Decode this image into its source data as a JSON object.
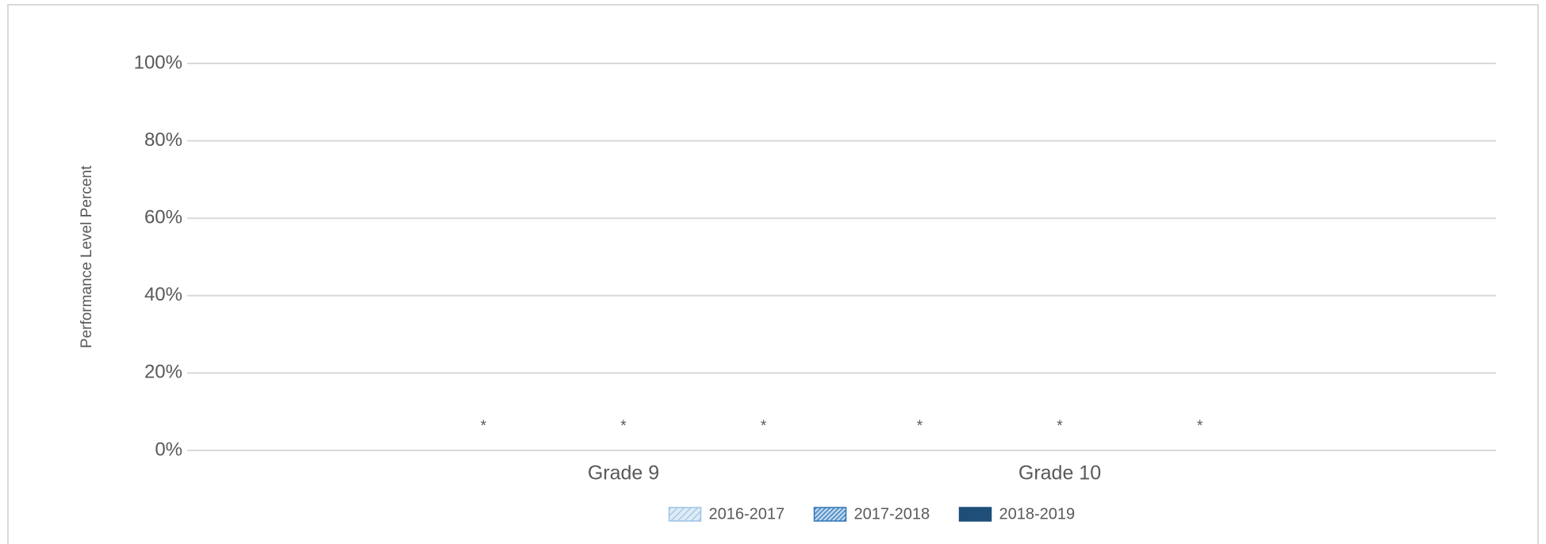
{
  "chart_data": {
    "type": "bar",
    "ylabel": "Performance Level Percent",
    "categories": [
      "Grade 9",
      "Grade 10"
    ],
    "series": [
      {
        "name": "2016-2017",
        "color": "#9dc3e6",
        "values": [
          null,
          null
        ],
        "value_labels": [
          "*",
          "*"
        ]
      },
      {
        "name": "2017-2018",
        "color": "#2e75b6",
        "values": [
          null,
          null
        ],
        "value_labels": [
          "*",
          "*"
        ]
      },
      {
        "name": "2018-2019",
        "color": "#1f4e79",
        "values": [
          null,
          null
        ],
        "value_labels": [
          "*",
          "*"
        ]
      }
    ],
    "ylim": [
      0,
      100
    ],
    "yticks": [
      {
        "value": 0,
        "label": "0%"
      },
      {
        "value": 20,
        "label": "20%"
      },
      {
        "value": 40,
        "label": "40%"
      },
      {
        "value": 60,
        "label": "60%"
      },
      {
        "value": 80,
        "label": "80%"
      },
      {
        "value": 100,
        "label": "100%"
      }
    ],
    "grid": true,
    "legend": "bottom"
  }
}
